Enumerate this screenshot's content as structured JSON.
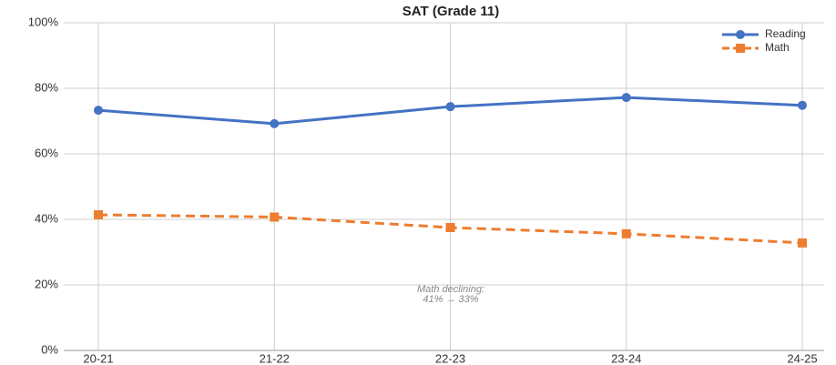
{
  "chart_data": {
    "type": "line",
    "title": "SAT (Grade 11)",
    "categories": [
      "20-21",
      "21-22",
      "22-23",
      "23-24",
      "24-25"
    ],
    "series": [
      {
        "name": "Reading",
        "color": "#4472c4",
        "marker": "circle",
        "dash": false,
        "values": [
          73.3,
          69.2,
          74.4,
          77.2,
          74.8
        ]
      },
      {
        "name": "Math",
        "color": "#ed7d31",
        "marker": "square",
        "dash": true,
        "values": [
          41.4,
          40.7,
          37.5,
          35.6,
          32.8
        ]
      }
    ],
    "ylim": [
      0,
      100
    ],
    "yticks": [
      {
        "value": 0,
        "label": "0%"
      },
      {
        "value": 20,
        "label": "20%"
      },
      {
        "value": 40,
        "label": "40%"
      },
      {
        "value": 60,
        "label": "60%"
      },
      {
        "value": 80,
        "label": "80%"
      },
      {
        "value": 100,
        "label": "100%"
      }
    ],
    "grid": true,
    "legend": "upper right",
    "annotation": [
      "Math declining:",
      "41% → 33%"
    ]
  }
}
